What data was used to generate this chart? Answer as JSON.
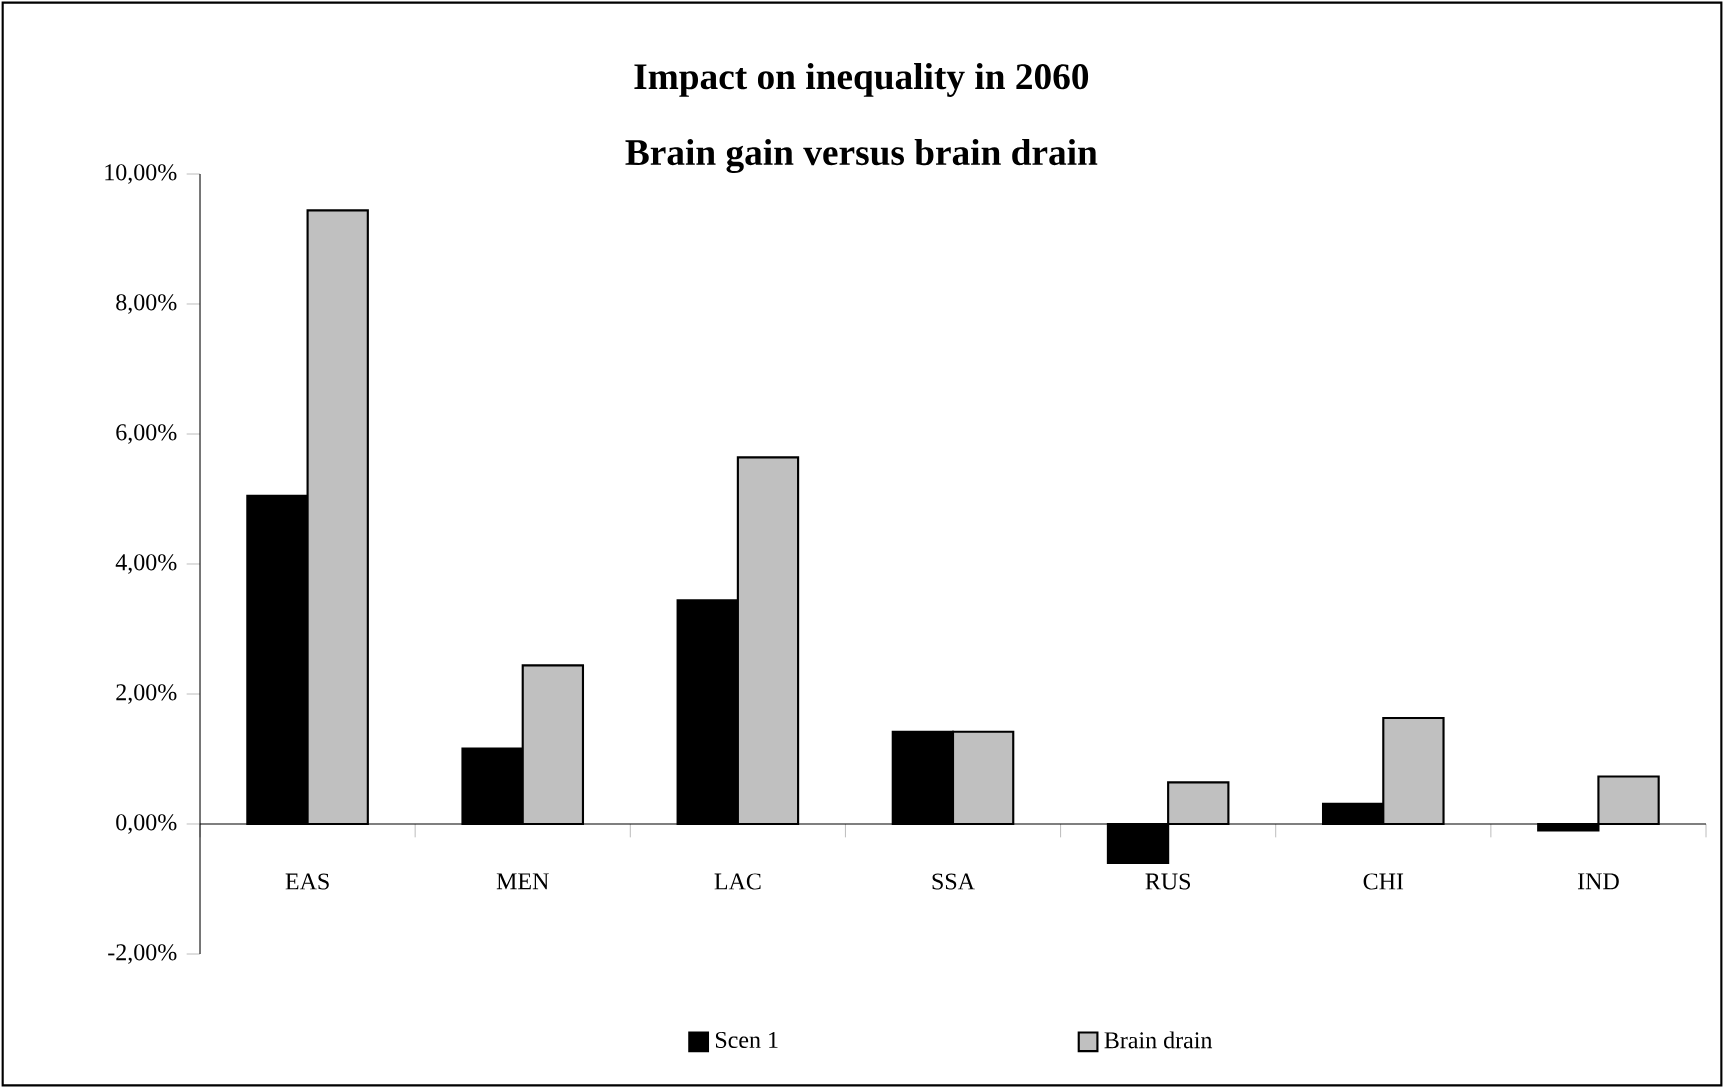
{
  "chart_data": {
    "type": "bar",
    "title": "Impact on inequality in 2060",
    "subtitle": "Brain gain versus brain drain",
    "categories": [
      "EAS",
      "MEN",
      "LAC",
      "SSA",
      "RUS",
      "CHI",
      "IND"
    ],
    "series": [
      {
        "name": "Scen 1",
        "color": "#000000",
        "values": [
          5.05,
          1.16,
          3.44,
          1.42,
          -0.6,
          0.31,
          -0.1
        ]
      },
      {
        "name": "Brain drain",
        "color": "#c0c0c0",
        "values": [
          9.44,
          2.44,
          5.64,
          1.42,
          0.64,
          1.63,
          0.73
        ]
      }
    ],
    "ylim": [
      -2,
      10
    ],
    "yticks": [
      {
        "value": -2,
        "label": "-2,00%"
      },
      {
        "value": 0,
        "label": "0,00%"
      },
      {
        "value": 2,
        "label": "2,00%"
      },
      {
        "value": 4,
        "label": "4,00%"
      },
      {
        "value": 6,
        "label": "6,00%"
      },
      {
        "value": 8,
        "label": "8,00%"
      },
      {
        "value": 10,
        "label": "10,00%"
      }
    ],
    "grid": false,
    "legend": "bottom"
  }
}
